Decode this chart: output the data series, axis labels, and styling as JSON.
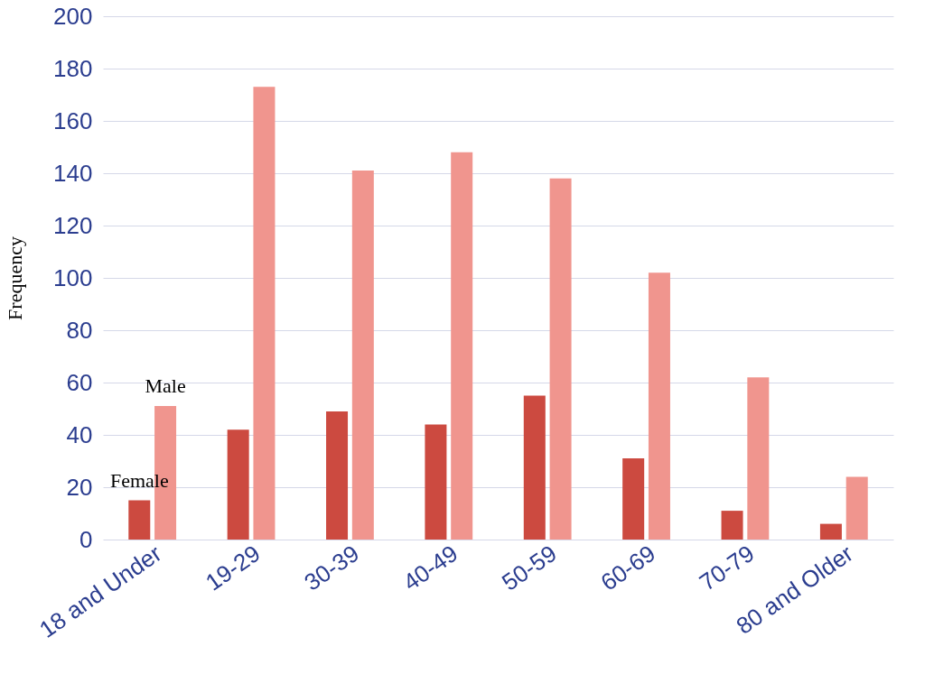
{
  "chart_data": {
    "type": "bar",
    "ylabel": "Frequency",
    "categories": [
      "18 and Under",
      "19-29",
      "30-39",
      "40-49",
      "50-59",
      "60-69",
      "70-79",
      "80 and Older"
    ],
    "series": [
      {
        "name": "Female",
        "color": "#cc4a40",
        "values": [
          15,
          42,
          49,
          44,
          55,
          31,
          11,
          6
        ]
      },
      {
        "name": "Male",
        "color": "#f0958e",
        "values": [
          51,
          173,
          141,
          148,
          138,
          102,
          62,
          24
        ]
      }
    ],
    "ylim": [
      0,
      200
    ],
    "yticks": [
      0,
      20,
      40,
      60,
      80,
      100,
      120,
      140,
      160,
      180,
      200
    ],
    "grid": "y",
    "legend": false
  }
}
